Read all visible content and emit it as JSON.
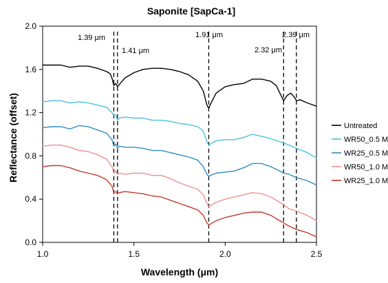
{
  "chart_data": {
    "type": "line",
    "title": "Saponite [SapCa-1]",
    "xlabel": "Wavelength (μm)",
    "ylabel": "Reflectance (offset)",
    "xlim": [
      1.0,
      2.5
    ],
    "ylim": [
      0.0,
      2.0
    ],
    "xticks": [
      1.0,
      1.5,
      2.0,
      2.5
    ],
    "xtick_labels": [
      "1.0",
      "1.5",
      "2.0",
      "2.5"
    ],
    "yticks": [
      0.0,
      0.4,
      0.8,
      1.2,
      1.6,
      2.0
    ],
    "ytick_labels": [
      "0.0",
      "0.4",
      "0.8",
      "1.2",
      "1.6",
      "2.0"
    ],
    "grid": false,
    "legend_position": "right",
    "reference_lines": [
      {
        "x": 1.39,
        "label": "1.39 μm"
      },
      {
        "x": 1.41,
        "label": "1.41 μm"
      },
      {
        "x": 1.91,
        "label": "1.91 μm"
      },
      {
        "x": 2.32,
        "label": "2.32 μm"
      },
      {
        "x": 2.39,
        "label": "2.39 μm"
      }
    ],
    "series": [
      {
        "name": "Untreated",
        "color": "#000000",
        "points": [
          [
            1.0,
            1.64
          ],
          [
            1.05,
            1.64
          ],
          [
            1.1,
            1.64
          ],
          [
            1.15,
            1.62
          ],
          [
            1.2,
            1.63
          ],
          [
            1.25,
            1.63
          ],
          [
            1.3,
            1.61
          ],
          [
            1.35,
            1.58
          ],
          [
            1.37,
            1.56
          ],
          [
            1.38,
            1.52
          ],
          [
            1.39,
            1.45
          ],
          [
            1.4,
            1.47
          ],
          [
            1.41,
            1.44
          ],
          [
            1.42,
            1.46
          ],
          [
            1.45,
            1.52
          ],
          [
            1.5,
            1.57
          ],
          [
            1.55,
            1.6
          ],
          [
            1.6,
            1.61
          ],
          [
            1.65,
            1.61
          ],
          [
            1.7,
            1.6
          ],
          [
            1.75,
            1.58
          ],
          [
            1.8,
            1.55
          ],
          [
            1.85,
            1.49
          ],
          [
            1.88,
            1.4
          ],
          [
            1.9,
            1.27
          ],
          [
            1.91,
            1.24
          ],
          [
            1.92,
            1.28
          ],
          [
            1.95,
            1.38
          ],
          [
            2.0,
            1.44
          ],
          [
            2.05,
            1.46
          ],
          [
            2.1,
            1.47
          ],
          [
            2.15,
            1.51
          ],
          [
            2.2,
            1.51
          ],
          [
            2.25,
            1.49
          ],
          [
            2.28,
            1.45
          ],
          [
            2.3,
            1.38
          ],
          [
            2.32,
            1.31
          ],
          [
            2.34,
            1.36
          ],
          [
            2.36,
            1.38
          ],
          [
            2.38,
            1.34
          ],
          [
            2.39,
            1.31
          ],
          [
            2.41,
            1.32
          ],
          [
            2.45,
            1.29
          ],
          [
            2.5,
            1.26
          ]
        ]
      },
      {
        "name": "WR50_0.5 M",
        "color": "#4bc0dd",
        "points": [
          [
            1.0,
            1.3
          ],
          [
            1.05,
            1.31
          ],
          [
            1.1,
            1.31
          ],
          [
            1.15,
            1.29
          ],
          [
            1.2,
            1.3
          ],
          [
            1.25,
            1.29
          ],
          [
            1.3,
            1.27
          ],
          [
            1.35,
            1.25
          ],
          [
            1.38,
            1.2
          ],
          [
            1.39,
            1.17
          ],
          [
            1.4,
            1.18
          ],
          [
            1.41,
            1.13
          ],
          [
            1.42,
            1.15
          ],
          [
            1.45,
            1.16
          ],
          [
            1.5,
            1.15
          ],
          [
            1.55,
            1.15
          ],
          [
            1.6,
            1.13
          ],
          [
            1.65,
            1.13
          ],
          [
            1.7,
            1.12
          ],
          [
            1.75,
            1.1
          ],
          [
            1.8,
            1.09
          ],
          [
            1.85,
            1.07
          ],
          [
            1.88,
            1.03
          ],
          [
            1.9,
            0.93
          ],
          [
            1.91,
            0.9
          ],
          [
            1.92,
            0.91
          ],
          [
            1.95,
            0.94
          ],
          [
            2.0,
            0.95
          ],
          [
            2.05,
            0.95
          ],
          [
            2.1,
            0.97
          ],
          [
            2.15,
            1.0
          ],
          [
            2.2,
            0.98
          ],
          [
            2.25,
            0.96
          ],
          [
            2.3,
            0.93
          ],
          [
            2.32,
            0.92
          ],
          [
            2.35,
            0.9
          ],
          [
            2.39,
            0.87
          ],
          [
            2.45,
            0.83
          ],
          [
            2.5,
            0.78
          ]
        ]
      },
      {
        "name": "WR25_0.5 M",
        "color": "#2f8cc2",
        "points": [
          [
            1.0,
            1.06
          ],
          [
            1.05,
            1.07
          ],
          [
            1.1,
            1.07
          ],
          [
            1.15,
            1.05
          ],
          [
            1.2,
            1.08
          ],
          [
            1.25,
            1.07
          ],
          [
            1.3,
            1.04
          ],
          [
            1.35,
            1.01
          ],
          [
            1.38,
            0.95
          ],
          [
            1.39,
            0.89
          ],
          [
            1.4,
            0.91
          ],
          [
            1.41,
            0.87
          ],
          [
            1.42,
            0.89
          ],
          [
            1.45,
            0.88
          ],
          [
            1.5,
            0.88
          ],
          [
            1.55,
            0.87
          ],
          [
            1.6,
            0.85
          ],
          [
            1.65,
            0.85
          ],
          [
            1.7,
            0.83
          ],
          [
            1.75,
            0.81
          ],
          [
            1.8,
            0.79
          ],
          [
            1.85,
            0.76
          ],
          [
            1.88,
            0.7
          ],
          [
            1.9,
            0.63
          ],
          [
            1.91,
            0.61
          ],
          [
            1.92,
            0.62
          ],
          [
            1.95,
            0.64
          ],
          [
            2.0,
            0.65
          ],
          [
            2.05,
            0.66
          ],
          [
            2.1,
            0.69
          ],
          [
            2.15,
            0.73
          ],
          [
            2.2,
            0.73
          ],
          [
            2.25,
            0.7
          ],
          [
            2.3,
            0.66
          ],
          [
            2.32,
            0.64
          ],
          [
            2.35,
            0.63
          ],
          [
            2.39,
            0.6
          ],
          [
            2.45,
            0.57
          ],
          [
            2.5,
            0.53
          ]
        ]
      },
      {
        "name": "WR50_1.0 M",
        "color": "#ef8f8f",
        "points": [
          [
            1.0,
            0.89
          ],
          [
            1.05,
            0.9
          ],
          [
            1.1,
            0.9
          ],
          [
            1.15,
            0.88
          ],
          [
            1.2,
            0.85
          ],
          [
            1.25,
            0.84
          ],
          [
            1.3,
            0.81
          ],
          [
            1.35,
            0.77
          ],
          [
            1.38,
            0.7
          ],
          [
            1.39,
            0.64
          ],
          [
            1.4,
            0.66
          ],
          [
            1.41,
            0.63
          ],
          [
            1.42,
            0.64
          ],
          [
            1.45,
            0.63
          ],
          [
            1.5,
            0.64
          ],
          [
            1.55,
            0.64
          ],
          [
            1.6,
            0.62
          ],
          [
            1.65,
            0.62
          ],
          [
            1.7,
            0.59
          ],
          [
            1.75,
            0.55
          ],
          [
            1.8,
            0.52
          ],
          [
            1.85,
            0.49
          ],
          [
            1.88,
            0.44
          ],
          [
            1.9,
            0.36
          ],
          [
            1.91,
            0.33
          ],
          [
            1.92,
            0.34
          ],
          [
            1.95,
            0.37
          ],
          [
            2.0,
            0.4
          ],
          [
            2.05,
            0.42
          ],
          [
            2.1,
            0.44
          ],
          [
            2.15,
            0.46
          ],
          [
            2.2,
            0.45
          ],
          [
            2.25,
            0.42
          ],
          [
            2.3,
            0.37
          ],
          [
            2.32,
            0.35
          ],
          [
            2.35,
            0.31
          ],
          [
            2.39,
            0.29
          ],
          [
            2.45,
            0.25
          ],
          [
            2.5,
            0.2
          ]
        ]
      },
      {
        "name": "WR25_1.0 M",
        "color": "#c0392b",
        "points": [
          [
            1.0,
            0.7
          ],
          [
            1.05,
            0.71
          ],
          [
            1.1,
            0.71
          ],
          [
            1.15,
            0.69
          ],
          [
            1.2,
            0.66
          ],
          [
            1.25,
            0.64
          ],
          [
            1.3,
            0.62
          ],
          [
            1.35,
            0.58
          ],
          [
            1.38,
            0.52
          ],
          [
            1.39,
            0.46
          ],
          [
            1.4,
            0.47
          ],
          [
            1.41,
            0.45
          ],
          [
            1.42,
            0.46
          ],
          [
            1.45,
            0.47
          ],
          [
            1.5,
            0.46
          ],
          [
            1.55,
            0.45
          ],
          [
            1.6,
            0.43
          ],
          [
            1.65,
            0.42
          ],
          [
            1.7,
            0.39
          ],
          [
            1.75,
            0.36
          ],
          [
            1.8,
            0.33
          ],
          [
            1.85,
            0.3
          ],
          [
            1.88,
            0.25
          ],
          [
            1.9,
            0.18
          ],
          [
            1.91,
            0.16
          ],
          [
            1.92,
            0.17
          ],
          [
            1.95,
            0.2
          ],
          [
            2.0,
            0.23
          ],
          [
            2.05,
            0.25
          ],
          [
            2.1,
            0.27
          ],
          [
            2.15,
            0.28
          ],
          [
            2.2,
            0.28
          ],
          [
            2.25,
            0.25
          ],
          [
            2.3,
            0.2
          ],
          [
            2.32,
            0.18
          ],
          [
            2.35,
            0.15
          ],
          [
            2.39,
            0.12
          ],
          [
            2.45,
            0.09
          ],
          [
            2.5,
            0.05
          ]
        ]
      }
    ]
  }
}
